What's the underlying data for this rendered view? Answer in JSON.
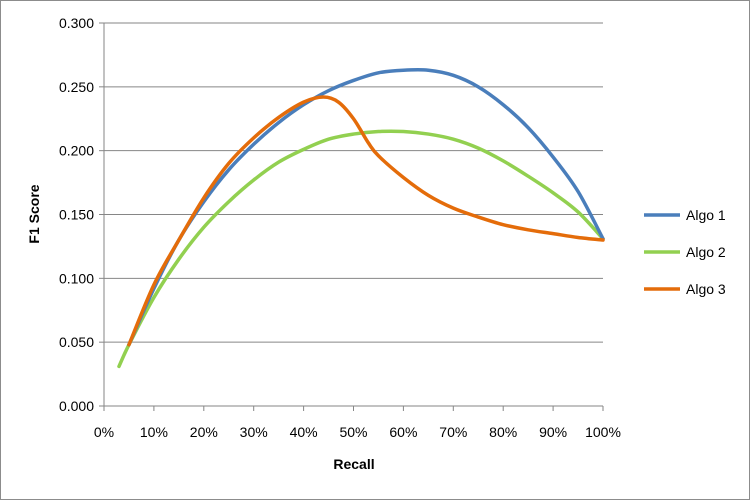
{
  "chart_data": {
    "type": "line",
    "title": "",
    "xlabel": "Recall",
    "ylabel": "F1 Score",
    "xlim": [
      0,
      100
    ],
    "ylim": [
      0,
      0.3
    ],
    "grid": "horizontal",
    "legend_position": "right",
    "x_ticks": [
      "0%",
      "10%",
      "20%",
      "30%",
      "40%",
      "50%",
      "60%",
      "70%",
      "80%",
      "90%",
      "100%"
    ],
    "y_ticks": [
      "0.000",
      "0.050",
      "0.100",
      "0.150",
      "0.200",
      "0.250",
      "0.300"
    ],
    "series": [
      {
        "name": "Algo 1",
        "color": "#4a7ebb",
        "x": [
          5,
          10,
          15,
          20,
          25,
          30,
          35,
          40,
          45,
          50,
          55,
          60,
          65,
          70,
          75,
          80,
          85,
          90,
          95,
          100
        ],
        "y": [
          0.048,
          0.092,
          0.13,
          0.16,
          0.185,
          0.205,
          0.222,
          0.236,
          0.247,
          0.255,
          0.261,
          0.263,
          0.263,
          0.259,
          0.25,
          0.236,
          0.218,
          0.195,
          0.168,
          0.131
        ]
      },
      {
        "name": "Algo 2",
        "color": "#92d050",
        "x": [
          3,
          5,
          10,
          15,
          20,
          25,
          30,
          35,
          40,
          45,
          50,
          55,
          60,
          65,
          70,
          75,
          80,
          85,
          90,
          95,
          100
        ],
        "y": [
          0.031,
          0.048,
          0.085,
          0.115,
          0.14,
          0.16,
          0.177,
          0.191,
          0.201,
          0.209,
          0.213,
          0.215,
          0.215,
          0.213,
          0.209,
          0.202,
          0.192,
          0.18,
          0.167,
          0.152,
          0.131
        ]
      },
      {
        "name": "Algo 3",
        "color": "#e46c0a",
        "x": [
          5,
          10,
          15,
          20,
          25,
          30,
          35,
          40,
          44,
          47,
          50,
          53,
          55,
          60,
          65,
          70,
          75,
          80,
          85,
          90,
          95,
          100
        ],
        "y": [
          0.048,
          0.095,
          0.13,
          0.163,
          0.19,
          0.21,
          0.226,
          0.238,
          0.242,
          0.238,
          0.225,
          0.206,
          0.196,
          0.179,
          0.165,
          0.155,
          0.148,
          0.142,
          0.138,
          0.135,
          0.132,
          0.13
        ]
      }
    ]
  }
}
